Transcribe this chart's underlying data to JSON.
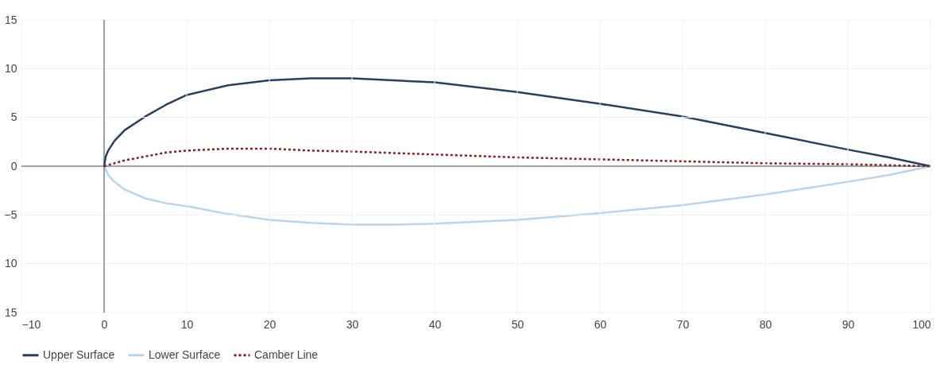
{
  "chart_data": {
    "type": "line",
    "xlim": [
      -10,
      100
    ],
    "xticks": [
      -10,
      0,
      10,
      20,
      30,
      40,
      50,
      60,
      70,
      80,
      90,
      100
    ],
    "ylim": [
      -15,
      15
    ],
    "yticks": [
      15,
      10,
      5,
      0,
      -5,
      {
        "value": -10,
        "label": "10"
      },
      {
        "value": -15,
        "label": "15"
      }
    ],
    "grid": true,
    "legend": "bottom left",
    "series": [
      {
        "name": "Upper Surface",
        "color": "#2a3f5f",
        "line_style": "solid",
        "x": [
          0,
          0.2,
          0.5,
          1.25,
          2.5,
          5,
          7.5,
          10,
          15,
          20,
          25,
          30,
          40,
          50,
          60,
          70,
          80,
          90,
          95,
          100
        ],
        "values": [
          0,
          1.0,
          1.6,
          2.6,
          3.7,
          5.1,
          6.3,
          7.3,
          8.3,
          8.8,
          9.0,
          9.0,
          8.6,
          7.6,
          6.4,
          5.1,
          3.4,
          1.7,
          0.9,
          0
        ]
      },
      {
        "name": "Lower Surface",
        "color": "#b8d4f0",
        "line_style": "solid",
        "x": [
          0,
          0.5,
          1.25,
          2.5,
          5,
          7.5,
          10,
          15,
          20,
          25,
          30,
          35,
          40,
          50,
          60,
          70,
          80,
          90,
          95,
          100
        ],
        "values": [
          0,
          -0.9,
          -1.6,
          -2.4,
          -3.3,
          -3.8,
          -4.1,
          -4.9,
          -5.5,
          -5.8,
          -6.0,
          -6.0,
          -5.9,
          -5.5,
          -4.8,
          -4.0,
          -2.9,
          -1.6,
          -0.9,
          0
        ]
      },
      {
        "name": "Camber Line",
        "color": "#8b1a1a",
        "line_style": "dotted",
        "x": [
          0,
          2.5,
          5,
          7.5,
          10,
          15,
          20,
          25,
          30,
          40,
          50,
          60,
          70,
          80,
          90,
          100
        ],
        "values": [
          0,
          0.6,
          1.0,
          1.4,
          1.6,
          1.8,
          1.8,
          1.6,
          1.5,
          1.2,
          0.9,
          0.7,
          0.5,
          0.3,
          0.2,
          0
        ]
      }
    ]
  }
}
